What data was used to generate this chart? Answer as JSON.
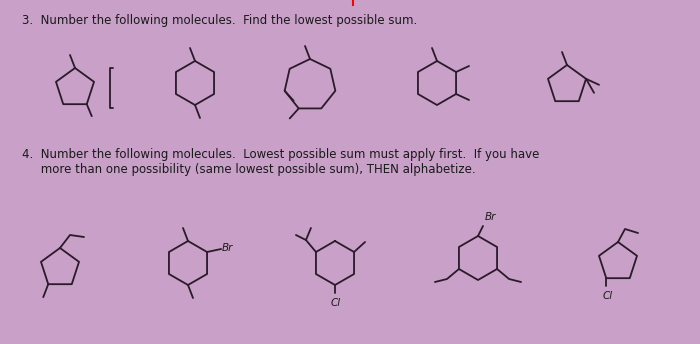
{
  "bg_color": "#c8a0c8",
  "title3": "3.  Number the following molecules.  Find the lowest possible sum.",
  "title4_line1": "4.  Number the following molecules.  Lowest possible sum must apply first.  If you have",
  "title4_line2": "     more than one possibility (same lowest possible sum), THEN alphabetize.",
  "text_color": "#1a1a1a",
  "molecule_color": "#2a1a2a",
  "label_Br1": "Br",
  "label_Br2": "Br",
  "label_Cl1": "Cl",
  "label_Cl2": "Cl"
}
